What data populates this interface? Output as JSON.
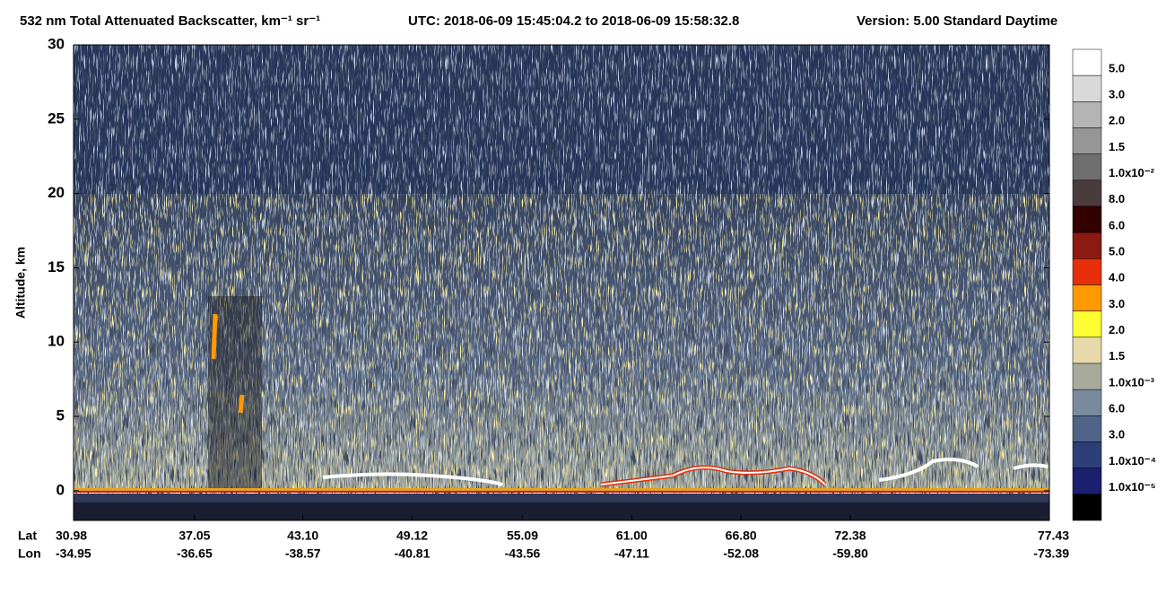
{
  "chart_data": {
    "type": "heatmap",
    "title": "532 nm Total Attenuated Backscatter, km⁻¹ sr⁻¹",
    "utc": "UTC:  2018-06-09 15:45:04.2  to  2018-06-09 15:58:32.8",
    "version": "Version: 5.00  Standard  Daytime",
    "ylabel": "Altitude, km",
    "ylim": [
      -2,
      30
    ],
    "yticks": [
      0,
      5,
      10,
      15,
      20,
      25,
      30
    ],
    "lat_label": "Lat",
    "lon_label": "Lon",
    "lat": [
      "30.98",
      "37.05",
      "43.10",
      "49.12",
      "55.09",
      "61.00",
      "66.80",
      "72.38",
      "77.43"
    ],
    "lon": [
      "-34.95",
      "-36.65",
      "-38.57",
      "-40.81",
      "-43.56",
      "-47.11",
      "-52.08",
      "-59.80",
      "-73.39"
    ],
    "colorbar": {
      "labels": [
        "5.0",
        "3.0",
        "2.0",
        "1.5",
        "1.0x10⁻²",
        "8.0",
        "6.0",
        "5.0",
        "4.0",
        "3.0",
        "2.0",
        "1.5",
        "1.0x10⁻³",
        "6.0",
        "3.0",
        "1.0x10⁻⁴",
        "1.0x10⁻⁵",
        null
      ],
      "colors": [
        "#ffffff",
        "#d9d9d9",
        "#b4b4b4",
        "#969696",
        "#6e6e6e",
        "#4a3c3a",
        "#330000",
        "#8c1a10",
        "#e62e0a",
        "#ff9900",
        "#ffff33",
        "#e8d9aa",
        "#a8aa9c",
        "#7a8a9e",
        "#4e6488",
        "#2c3f78",
        "#1a1f6e",
        "#000000"
      ]
    }
  }
}
